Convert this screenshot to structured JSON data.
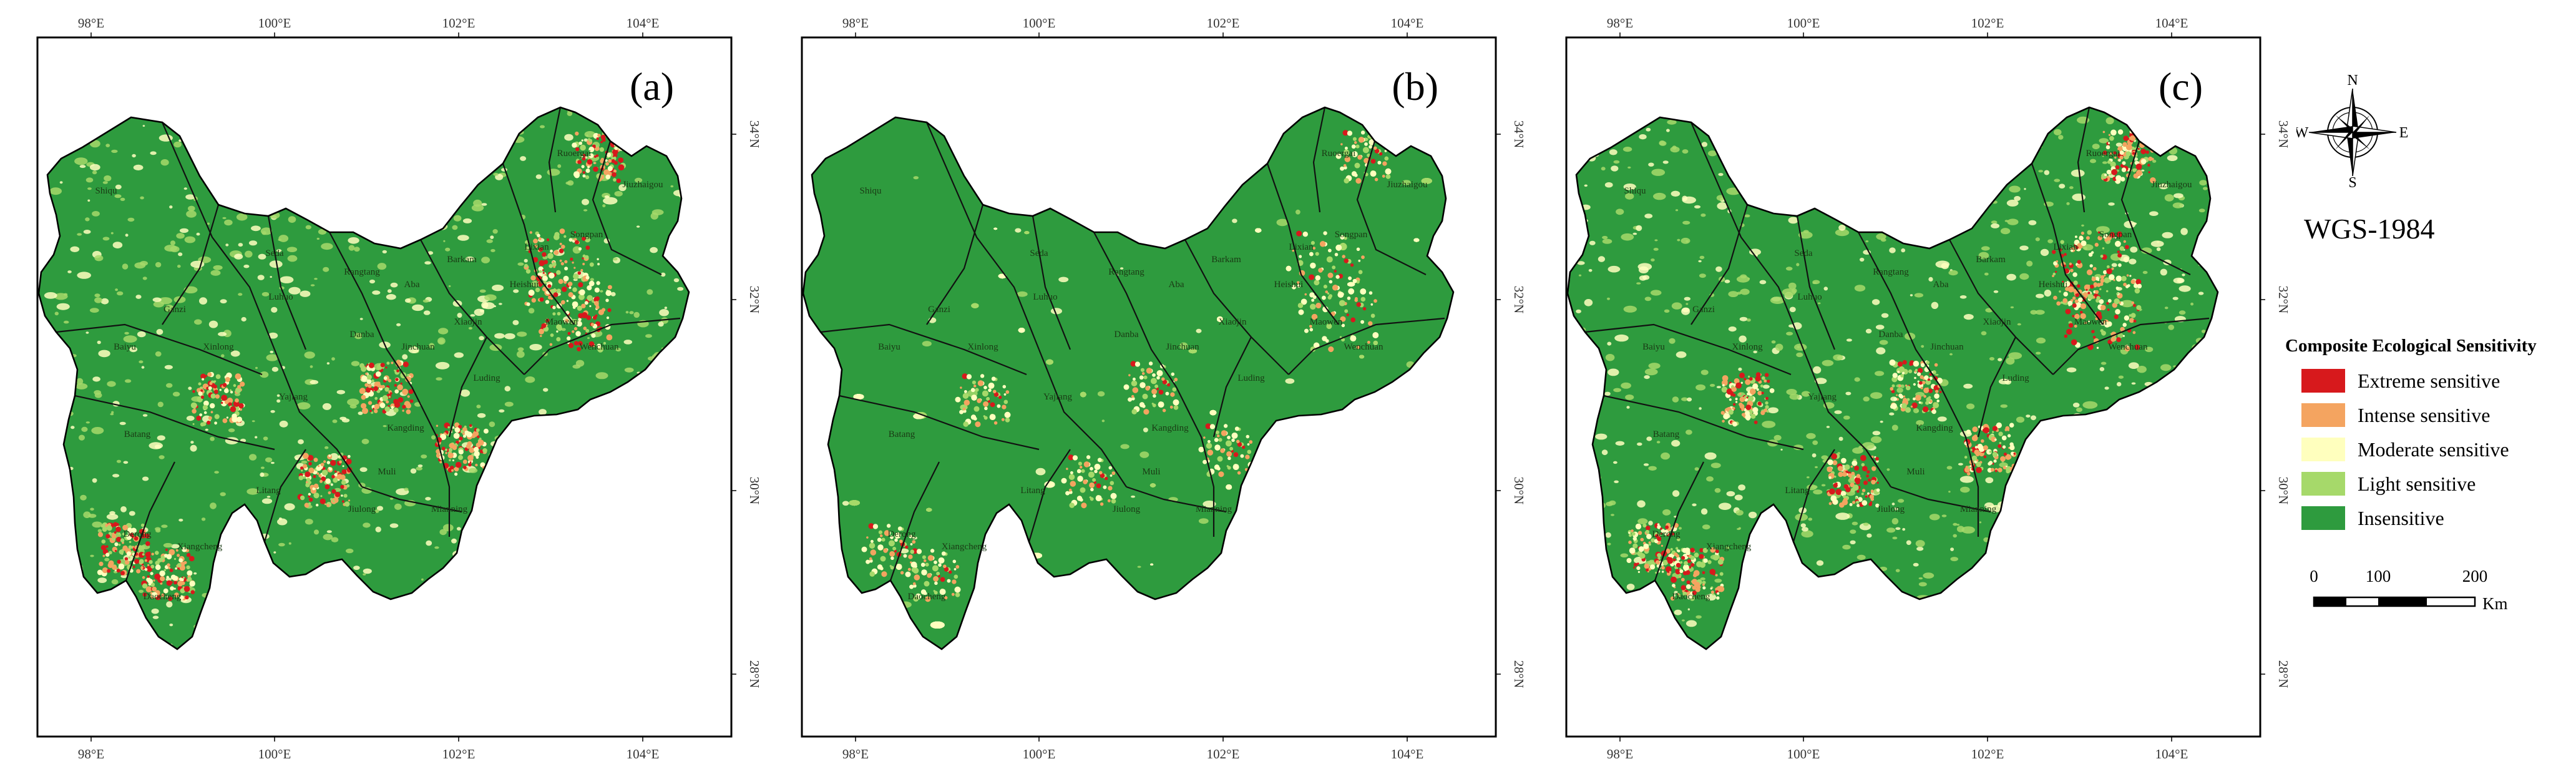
{
  "panels": [
    {
      "label": "(a)",
      "variant": 0
    },
    {
      "label": "(b)",
      "variant": 1
    },
    {
      "label": "(c)",
      "variant": 2
    }
  ],
  "axes": {
    "top_ticks": [
      "98°E",
      "100°E",
      "102°E",
      "104°E"
    ],
    "bottom_ticks": [
      "98°E",
      "100°E",
      "102°E",
      "104°E"
    ],
    "side_ticks": [
      "34°N",
      "32°N",
      "30°N",
      "28°N"
    ]
  },
  "county_names": [
    "Shiqu",
    "Seda",
    "Aba",
    "Ruoergai",
    "Jiuzhaigou",
    "Ganzi",
    "Luhuo",
    "Rangtang",
    "Songpan",
    "Baiyu",
    "Xinlong",
    "Danba",
    "Barkam",
    "Heishui",
    "Maowen",
    "Batang",
    "Litang",
    "Kangding",
    "Wenchuan",
    "Jinchuan",
    "Xiangcheng",
    "Daocheng",
    "Muli",
    "Jiulong",
    "Yajiang",
    "Luding",
    "Mianning",
    "Derong",
    "Xiaojin",
    "Lixian"
  ],
  "compass": {
    "n": "N",
    "s": "S",
    "e": "E",
    "w": "W"
  },
  "projection": "WGS-1984",
  "legend": {
    "title": "Composite Ecological Sensitivity",
    "items": [
      {
        "label": "Extreme sensitive",
        "color": "#d7191c"
      },
      {
        "label": "Intense sensitive",
        "color": "#f4a460"
      },
      {
        "label": "Moderate sensitive",
        "color": "#ffffbe"
      },
      {
        "label": "Light sensitive",
        "color": "#a6d96a"
      },
      {
        "label": "Insensitive",
        "color": "#2e9b3e"
      }
    ]
  },
  "scale": {
    "ticks": [
      "0",
      "100",
      "200"
    ],
    "unit": "Km"
  }
}
